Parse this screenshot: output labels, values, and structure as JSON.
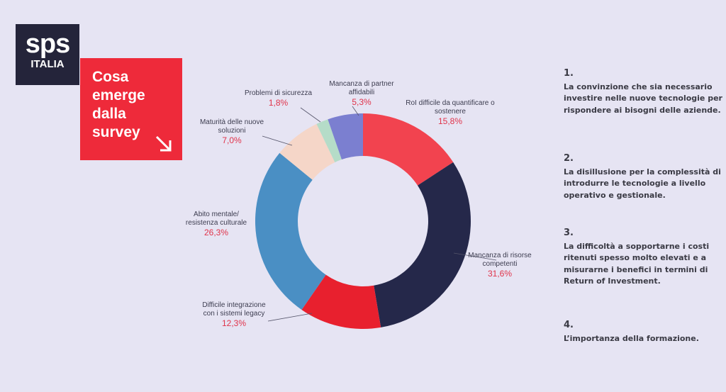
{
  "logo": {
    "brand": "sps",
    "sub": "ITALIA"
  },
  "title_box": {
    "lines": [
      "Cosa",
      "emerge",
      "dalla",
      "survey"
    ]
  },
  "chart_data": {
    "type": "pie",
    "donut": true,
    "title": "Cosa emerge dalla survey",
    "categories": [
      "RoI difficile da quantificare o sostenere",
      "Mancanza di risorse competenti",
      "Difficile integrazione con i sistemi legacy",
      "Abito mentale/ resistenza culturale",
      "Maturità delle nuove soluzioni",
      "Problemi di sicurezza",
      "Mancanza di partner affidabili"
    ],
    "values": [
      15.8,
      31.6,
      12.3,
      26.3,
      7.0,
      1.8,
      5.3
    ],
    "value_labels": [
      "15,8%",
      "31,6%",
      "12,3%",
      "26,3%",
      "7,0%",
      "1,8%",
      "5,3%"
    ],
    "colors": [
      "#f2434f",
      "#25284a",
      "#e8202e",
      "#4a8fc4",
      "#f5d6c8",
      "#b5dcc8",
      "#7b7fd0"
    ]
  },
  "notes": [
    {
      "num": "1.",
      "text": "La convinzione che sia necessario investire nelle nuove tecnologie per rispondere ai bisogni delle aziende."
    },
    {
      "num": "2.",
      "text": "La disillusione per la complessità di introdurre le tecnologie a livello operativo e gestionale."
    },
    {
      "num": "3.",
      "text": "La difficoltà a sopportarne i costi ritenuti spesso molto elevati e a misurarne i benefici in termini di Return of Investment."
    },
    {
      "num": "4.",
      "text": "L’importanza della formazione."
    }
  ]
}
